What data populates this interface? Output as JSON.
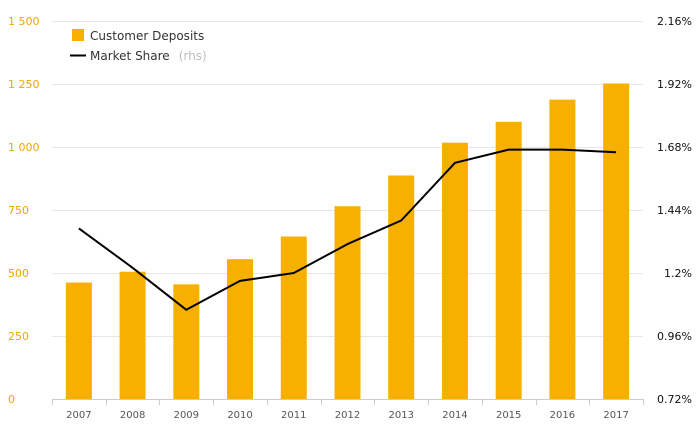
{
  "chart_data": {
    "type": "bar",
    "categories": [
      "2007",
      "2008",
      "2009",
      "2010",
      "2011",
      "2012",
      "2013",
      "2014",
      "2015",
      "2016",
      "2017"
    ],
    "series": [
      {
        "name": "Customer Deposits",
        "type": "bar",
        "axis": "left",
        "color": "#f8b000",
        "values": [
          462,
          505,
          455,
          555,
          645,
          765,
          887,
          1017,
          1100,
          1188,
          1252
        ]
      },
      {
        "name": "Market Share",
        "name_suffix": "(rhs)",
        "type": "line",
        "axis": "right",
        "color": "#000000",
        "values": [
          1.37,
          1.22,
          1.06,
          1.17,
          1.2,
          1.31,
          1.4,
          1.62,
          1.67,
          1.67,
          1.66
        ]
      }
    ],
    "left_axis": {
      "ylim": [
        0,
        1500
      ],
      "ticks": [
        0,
        250,
        500,
        750,
        1000,
        1250,
        1500
      ],
      "tick_labels": [
        "0",
        "250",
        "500",
        "750",
        "1 000",
        "1 250",
        "1 500"
      ],
      "color": "#f0a500"
    },
    "right_axis": {
      "ylim": [
        0.72,
        2.16
      ],
      "ticks": [
        0.72,
        0.96,
        1.2,
        1.44,
        1.68,
        1.92,
        2.16
      ],
      "tick_labels": [
        "0.72%",
        "0.96%",
        "1.2%",
        "1.44%",
        "1.68%",
        "1.92%",
        "2.16%"
      ]
    },
    "grid": true,
    "legend_position": "top-left"
  }
}
